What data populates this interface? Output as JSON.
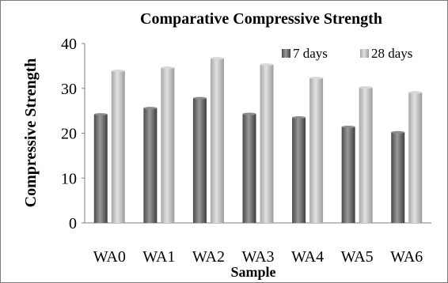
{
  "chart_data": {
    "type": "bar",
    "title": "Comparative Compressive Strength",
    "xlabel": "Sample",
    "ylabel": "Compressive Strength",
    "categories": [
      "WA0",
      "WA1",
      "WA2",
      "WA3",
      "WA4",
      "WA5",
      "WA6"
    ],
    "series": [
      {
        "name": "7 days",
        "values": [
          24.2,
          25.6,
          27.8,
          24.3,
          23.5,
          21.4,
          20.2
        ],
        "color": "#6f6f6f"
      },
      {
        "name": "28 days",
        "values": [
          33.9,
          34.6,
          36.7,
          35.3,
          32.3,
          30.2,
          29.1
        ],
        "color": "#bcbcbc"
      }
    ],
    "ylim": [
      0,
      40
    ],
    "yticks": [
      0,
      10,
      20,
      30,
      40
    ],
    "grid": false,
    "legend_position": "top-right"
  }
}
